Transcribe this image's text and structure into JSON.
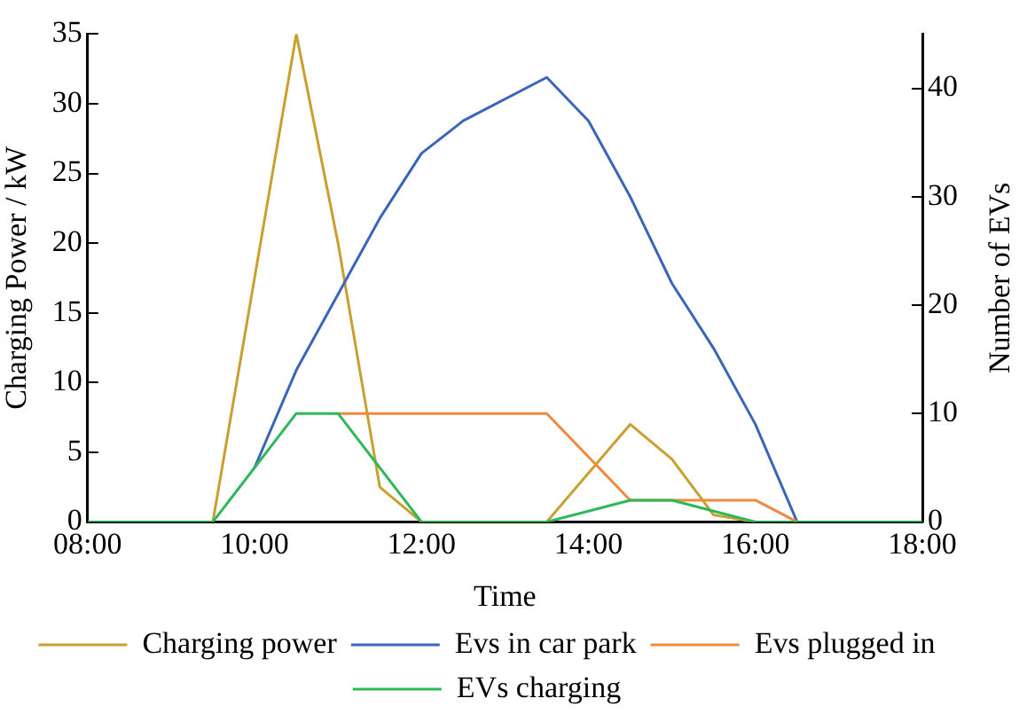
{
  "chart_data": {
    "type": "line",
    "xlabel": "Time",
    "ylabel": "Charging Power / kW",
    "y2label": "Number of EVs",
    "xlim": [
      8,
      18
    ],
    "xticks": [
      {
        "value": 8,
        "label": "08:00"
      },
      {
        "value": 10,
        "label": "10:00"
      },
      {
        "value": 12,
        "label": "12:00"
      },
      {
        "value": 14,
        "label": "14:00"
      },
      {
        "value": 16,
        "label": "16:00"
      },
      {
        "value": 18,
        "label": "18:00"
      }
    ],
    "ylim": [
      0,
      35
    ],
    "yticks": [
      0,
      5,
      10,
      15,
      20,
      25,
      30,
      35
    ],
    "y2lim": [
      0,
      45
    ],
    "y2ticks": [
      0,
      10,
      20,
      30,
      40
    ],
    "grid": false,
    "legend": "bottom",
    "marker": "none",
    "line_style": "solid",
    "series": [
      {
        "name": "Charging power",
        "color": "#c9a030",
        "x": [
          9.5,
          10.5,
          11,
          11.5,
          12,
          13.5,
          14.5,
          15,
          15.5,
          16
        ],
        "values": [
          0,
          35,
          20,
          2.5,
          0,
          0,
          7,
          4.5,
          0.5,
          0
        ]
      },
      {
        "name": "Evs in car park",
        "color": "#3a66b8",
        "axis": "y2",
        "x": [
          10,
          10.5,
          11,
          11.5,
          12,
          12.5,
          13.5,
          14,
          14.5,
          15,
          15.5,
          16,
          16.5
        ],
        "values": [
          5,
          14,
          21,
          28,
          34,
          37,
          41,
          37,
          30,
          22,
          16,
          9,
          0
        ]
      },
      {
        "name": "Evs plugged in",
        "color": "#f08a40",
        "axis": "y2",
        "x": [
          11,
          13.5,
          14.5,
          16,
          16.5
        ],
        "values": [
          10,
          10,
          2,
          2,
          0
        ]
      },
      {
        "name": "EVs charging",
        "color": "#2db85a",
        "axis": "y2",
        "x": [
          8,
          9.5,
          10,
          10.5,
          11,
          12,
          13.5,
          14,
          14.5,
          15,
          15.5,
          16,
          18
        ],
        "values": [
          0,
          0,
          5,
          10,
          10,
          0,
          0,
          1,
          2,
          2,
          1,
          0,
          0
        ]
      }
    ]
  }
}
